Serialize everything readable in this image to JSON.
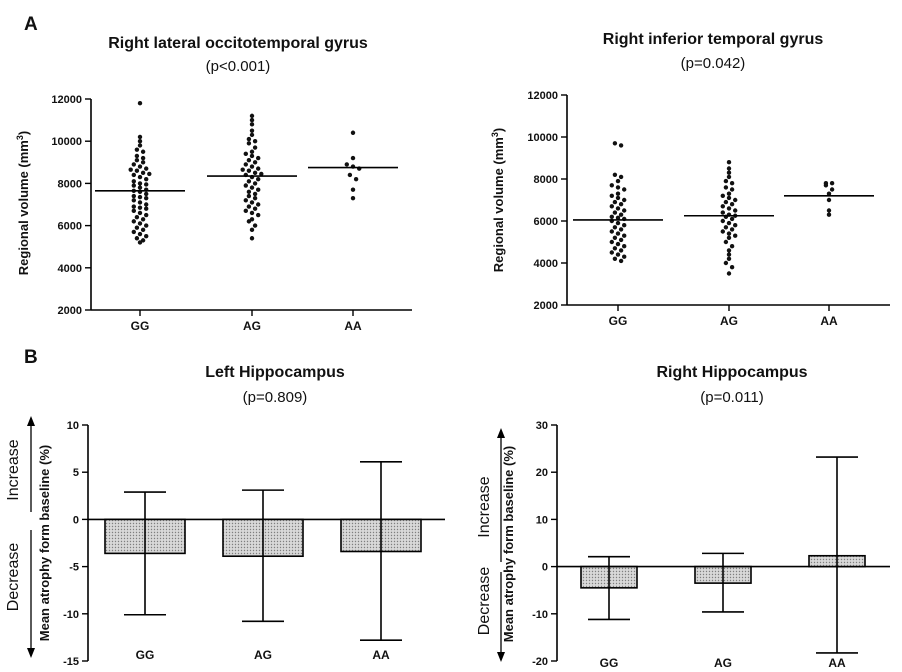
{
  "figure": {
    "panel_a_letter": "A",
    "panel_b_letter": "B",
    "increase_label": "Increase",
    "decrease_label": "Decrease"
  },
  "colors": {
    "axis": "#000000",
    "bar_fill": "#d9d9d9",
    "bar_hatch": "#8a8a8a",
    "point": "#111111"
  },
  "chart_data": [
    {
      "type": "scatter",
      "title": "Right lateral occitotemporal gyrus",
      "subtitle": "(p<0.001)",
      "ylabel": "Regional volume (mm3)",
      "ylabel_main": "Regional volume (mm",
      "ylabel_sup": "3",
      "ylabel_close": ")",
      "categories": [
        "GG",
        "AG",
        "AA"
      ],
      "ylim": [
        2000,
        12000
      ],
      "yticks": [
        2000,
        4000,
        6000,
        8000,
        10000,
        12000
      ],
      "means": [
        7650,
        8350,
        8750
      ],
      "points": [
        [
          11800,
          10200,
          10000,
          9800,
          9600,
          9500,
          9300,
          9200,
          9100,
          9000,
          8900,
          8800,
          8700,
          8650,
          8600,
          8500,
          8450,
          8400,
          8300,
          8200,
          8100,
          8000,
          7950,
          7900,
          7800,
          7700,
          7650,
          7600,
          7500,
          7400,
          7350,
          7300,
          7200,
          7100,
          7000,
          6900,
          6850,
          6800,
          6700,
          6600,
          6500,
          6400,
          6300,
          6200,
          6100,
          6000,
          5900,
          5800,
          5700,
          5600,
          5500,
          5400,
          5300,
          5200
        ],
        [
          11200,
          11000,
          10800,
          10500,
          10300,
          10100,
          10000,
          9900,
          9700,
          9500,
          9400,
          9300,
          9200,
          9100,
          9000,
          8900,
          8800,
          8700,
          8650,
          8600,
          8500,
          8450,
          8400,
          8300,
          8200,
          8100,
          8000,
          7900,
          7800,
          7700,
          7600,
          7500,
          7400,
          7300,
          7200,
          7100,
          7000,
          6900,
          6800,
          6700,
          6600,
          6500,
          6300,
          6200,
          6000,
          5800,
          5400
        ],
        [
          10400,
          9200,
          8900,
          8800,
          8700,
          8400,
          8200,
          7700,
          7300
        ]
      ]
    },
    {
      "type": "scatter",
      "title": "Right inferior temporal gyrus",
      "subtitle": "(p=0.042)",
      "ylabel": "Regional volume (mm3)",
      "ylabel_main": "Regional volume (mm",
      "ylabel_sup": "3",
      "ylabel_close": ")",
      "categories": [
        "GG",
        "AG",
        "AA"
      ],
      "ylim": [
        2000,
        12000
      ],
      "yticks": [
        2000,
        4000,
        6000,
        8000,
        10000,
        12000
      ],
      "means": [
        6050,
        6250,
        7200
      ],
      "points": [
        [
          9700,
          9600,
          8200,
          8100,
          7900,
          7700,
          7600,
          7500,
          7300,
          7200,
          7100,
          7000,
          6900,
          6800,
          6700,
          6600,
          6500,
          6400,
          6300,
          6200,
          6150,
          6100,
          6000,
          5900,
          5800,
          5700,
          5600,
          5500,
          5400,
          5300,
          5200,
          5100,
          5000,
          4900,
          4800,
          4700,
          4600,
          4500,
          4400,
          4300,
          4200,
          4100
        ],
        [
          8800,
          8500,
          8300,
          8100,
          7900,
          7800,
          7600,
          7500,
          7300,
          7200,
          7100,
          7000,
          6900,
          6800,
          6700,
          6600,
          6500,
          6400,
          6300,
          6250,
          6200,
          6100,
          6000,
          5900,
          5800,
          5700,
          5600,
          5500,
          5400,
          5300,
          5200,
          5000,
          4800,
          4600,
          4400,
          4200,
          4000,
          3800,
          3500
        ],
        [
          7800,
          7800,
          7700,
          7500,
          7300,
          7000,
          6500,
          6300
        ]
      ]
    },
    {
      "type": "bar",
      "title": "Left Hippocampus",
      "subtitle": "(p=0.809)",
      "ylabel": "Mean atrophy form baseline (%)",
      "categories": [
        "GG",
        "AG",
        "AA"
      ],
      "ylim": [
        -15,
        10
      ],
      "yticks": [
        -15,
        -10,
        -5,
        0,
        5,
        10
      ],
      "ytick_labels": [
        "-15",
        "-10",
        "-5",
        "0",
        "5",
        "10"
      ],
      "values": [
        -3.6,
        -3.9,
        -3.4
      ],
      "error_high": [
        2.9,
        3.1,
        6.1
      ],
      "error_low": [
        -10.1,
        -10.8,
        -12.8
      ]
    },
    {
      "type": "bar",
      "title": "Right Hippocampus",
      "subtitle": "(p=0.011)",
      "ylabel": "Mean atrophy form baseline (%)",
      "categories": [
        "GG",
        "AG",
        "AA"
      ],
      "ylim": [
        -20,
        30
      ],
      "yticks": [
        -20,
        -10,
        0,
        10,
        20,
        30
      ],
      "ytick_labels": [
        "-20",
        "-10",
        "0",
        "10",
        "20",
        "30"
      ],
      "values": [
        -4.5,
        -3.5,
        2.3
      ],
      "error_high": [
        2.1,
        2.8,
        23.2
      ],
      "error_low": [
        -11.2,
        -9.6,
        -18.3
      ]
    }
  ]
}
